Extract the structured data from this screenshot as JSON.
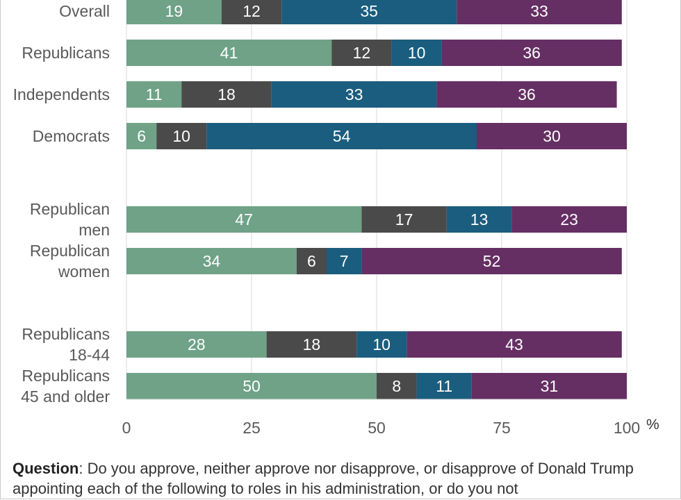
{
  "chart_data": {
    "type": "bar",
    "orientation": "horizontal",
    "stacked": true,
    "categories": [
      [
        "Overall"
      ],
      [
        "Republicans"
      ],
      [
        "Independents"
      ],
      [
        "Democrats"
      ],
      [
        "Republican",
        "men"
      ],
      [
        "Republican",
        "women"
      ],
      [
        "Republicans",
        "18-44"
      ],
      [
        "Republicans",
        "45 and older"
      ]
    ],
    "series": [
      {
        "color": "#6fa287",
        "values": [
          19,
          41,
          11,
          6,
          47,
          34,
          28,
          50
        ]
      },
      {
        "color": "#4a4a4a",
        "values": [
          12,
          12,
          18,
          10,
          17,
          6,
          18,
          8
        ]
      },
      {
        "color": "#1b5d7e",
        "values": [
          35,
          10,
          33,
          54,
          13,
          7,
          10,
          11
        ]
      },
      {
        "color": "#652f63",
        "values": [
          33,
          36,
          36,
          30,
          23,
          52,
          43,
          31
        ]
      }
    ],
    "xlim": [
      0,
      100
    ],
    "xticks": [
      "0",
      "25",
      "50",
      "75",
      "100"
    ],
    "x_unit": "%",
    "grid": true
  },
  "question": {
    "label": "Question",
    "text": ": Do you approve, neither approve nor disapprove, or disapprove of Donald Trump appointing each of the following to roles in his administration, or do you not"
  }
}
